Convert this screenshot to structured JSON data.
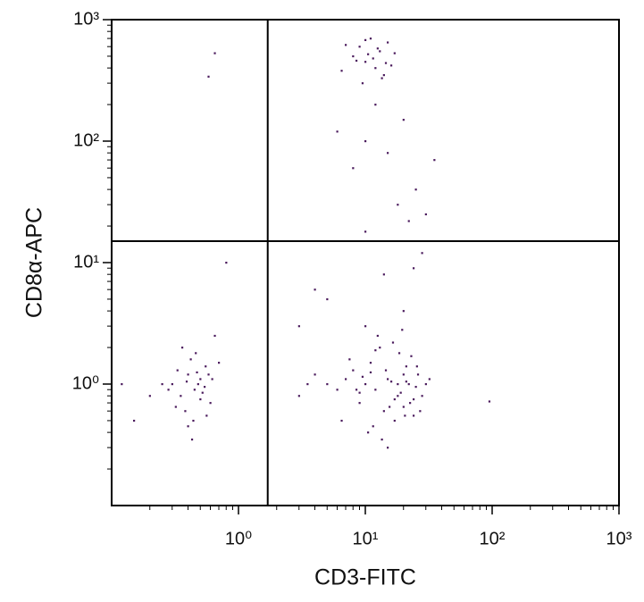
{
  "chart_data": {
    "type": "scatter",
    "x_label": "CD3-FITC",
    "y_label": "CD8α-APC",
    "log_x": true,
    "log_y": true,
    "xlim": [
      0.1,
      1000
    ],
    "ylim": [
      0.1,
      1000
    ],
    "xticks": [
      {
        "value": 1,
        "label": "10⁰"
      },
      {
        "value": 10,
        "label": "10¹"
      },
      {
        "value": 100,
        "label": "10²"
      },
      {
        "value": 1000,
        "label": "10³"
      }
    ],
    "yticks": [
      {
        "value": 1,
        "label": "10⁰"
      },
      {
        "value": 10,
        "label": "10¹"
      },
      {
        "value": 100,
        "label": "10²"
      },
      {
        "value": 1000,
        "label": "10³"
      }
    ],
    "gates": {
      "x": 1.7,
      "y": 15
    },
    "color": "#4a1a5c",
    "x": [
      0.3,
      0.35,
      0.4,
      0.45,
      0.5,
      0.55,
      0.6,
      0.42,
      0.38,
      0.48,
      0.52,
      0.33,
      0.28,
      0.62,
      0.7,
      0.44,
      0.36,
      0.5,
      0.58,
      0.25,
      0.2,
      0.46,
      0.4,
      0.54,
      0.65,
      0.32,
      0.47,
      0.39,
      0.43,
      0.56,
      10,
      12,
      15,
      18,
      20,
      22,
      25,
      8,
      9,
      11,
      14,
      16,
      19,
      21,
      24,
      7,
      6,
      5,
      13,
      17,
      23,
      26,
      28,
      30,
      10.5,
      12.5,
      15.5,
      18.5,
      20.5,
      9.5,
      11.5,
      8.5,
      4,
      3,
      3.5,
      14.5,
      16.5,
      22.5,
      27,
      32,
      6.5,
      7.5,
      13.5,
      19.5,
      25.5,
      10,
      15,
      20,
      12,
      18,
      9,
      24,
      11,
      17,
      21,
      8,
      9,
      10,
      11,
      12,
      13,
      14,
      15,
      9.5,
      10.5,
      11.5,
      7,
      16,
      6.5,
      12.5,
      8.5,
      17,
      13.5,
      10,
      14.5,
      10,
      15,
      20,
      8,
      12,
      25,
      30,
      6,
      35,
      18,
      10,
      22,
      5,
      14,
      28,
      3,
      4,
      20,
      24,
      0.8,
      0.65,
      0.58,
      95,
      0.12,
      0.15
    ],
    "y": [
      1.0,
      0.8,
      1.2,
      0.9,
      1.1,
      1.4,
      0.7,
      1.6,
      0.6,
      1.0,
      0.85,
      1.3,
      0.9,
      1.1,
      1.5,
      0.5,
      2.0,
      0.75,
      1.2,
      1.0,
      0.8,
      1.8,
      0.45,
      0.95,
      2.5,
      0.65,
      1.25,
      1.05,
      0.35,
      0.55,
      1.0,
      0.9,
      1.1,
      0.8,
      1.2,
      1.0,
      0.95,
      1.3,
      0.7,
      1.5,
      0.6,
      1.05,
      0.85,
      1.4,
      0.75,
      1.1,
      0.9,
      1.0,
      2.0,
      0.5,
      1.7,
      1.2,
      0.8,
      1.0,
      0.4,
      2.5,
      0.65,
      1.8,
      0.55,
      1.15,
      0.45,
      0.9,
      1.2,
      0.8,
      1.0,
      1.3,
      2.2,
      0.7,
      0.6,
      1.1,
      0.5,
      1.6,
      0.35,
      2.8,
      1.4,
      3.0,
      0.3,
      0.65,
      1.9,
      1.0,
      0.85,
      0.55,
      1.25,
      0.75,
      1.05,
      500,
      600,
      450,
      700,
      400,
      550,
      350,
      650,
      300,
      520,
      480,
      620,
      420,
      380,
      580,
      460,
      530,
      330,
      680,
      440,
      100,
      80,
      150,
      60,
      200,
      40,
      25,
      120,
      70,
      30,
      18,
      22,
      5,
      8,
      12,
      3,
      6,
      4,
      9,
      10,
      530,
      340,
      0.72,
      1.0,
      0.5
    ]
  }
}
